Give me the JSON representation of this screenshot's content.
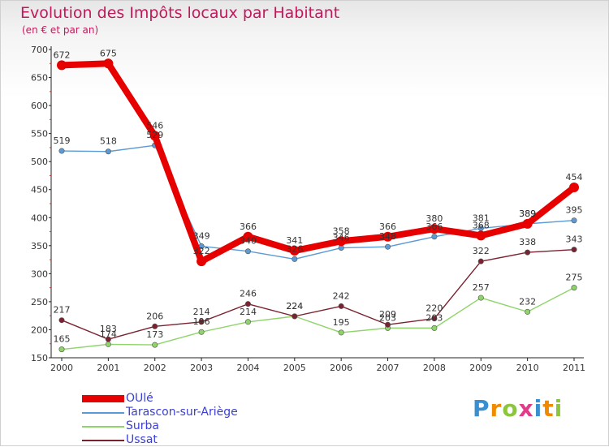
{
  "header": {
    "title": "Evolution des Impôts locaux par Habitant",
    "subtitle": "(en € et par an)"
  },
  "brand": {
    "letters": [
      "P",
      "r",
      "o",
      "x",
      "i",
      "t",
      "i"
    ],
    "colors": [
      "#3a8fd0",
      "#f08a00",
      "#8cc63f",
      "#e03c8a",
      "#3a8fd0",
      "#f08a00",
      "#8cc63f"
    ]
  },
  "chart_data": {
    "type": "line",
    "title": "Evolution des Impôts locaux par Habitant",
    "subtitle": "(en € et par an)",
    "xlabel": "",
    "ylabel": "",
    "x": [
      "2000",
      "2001",
      "2002",
      "2003",
      "2004",
      "2005",
      "2006",
      "2007",
      "2008",
      "2009",
      "2010",
      "2011"
    ],
    "ylim": [
      150,
      700
    ],
    "yticks": [
      150,
      200,
      250,
      300,
      350,
      400,
      450,
      500,
      550,
      600,
      650,
      700
    ],
    "grid": false,
    "legend": "bottom-left",
    "series": [
      {
        "name": "OUlé",
        "color": "#e60000",
        "emphasis": true,
        "values": [
          672,
          675,
          546,
          322,
          366,
          341,
          358,
          366,
          380,
          368,
          389,
          454
        ],
        "labels": [
          "672",
          "675",
          "546",
          "322",
          "366",
          "341",
          "358",
          "366",
          "380",
          "368",
          "389",
          "454"
        ]
      },
      {
        "name": "Tarascon-sur-Ariège",
        "color": "#5b9bd5",
        "emphasis": false,
        "values": [
          519,
          518,
          529,
          349,
          340,
          326,
          346,
          348,
          366,
          381,
          389,
          395
        ],
        "labels": [
          "519",
          "518",
          "529",
          "349",
          "340",
          "326",
          "346",
          "348",
          "366",
          "381",
          "389",
          "395"
        ]
      },
      {
        "name": "Surba",
        "color": "#8fd46a",
        "emphasis": false,
        "values": [
          165,
          174,
          173,
          196,
          214,
          224,
          195,
          203,
          203,
          257,
          232,
          275
        ],
        "labels": [
          "165",
          "174",
          "173",
          "196",
          "214",
          "224",
          "195",
          "203",
          "203",
          "257",
          "232",
          "275"
        ]
      },
      {
        "name": "Ussat",
        "color": "#7a2230",
        "emphasis": false,
        "values": [
          217,
          183,
          206,
          214,
          246,
          224,
          242,
          209,
          220,
          322,
          338,
          343
        ],
        "labels": [
          "217",
          "183",
          "206",
          "214",
          "246",
          "224",
          "242",
          "209",
          "220",
          "322",
          "338",
          "343"
        ]
      }
    ]
  }
}
